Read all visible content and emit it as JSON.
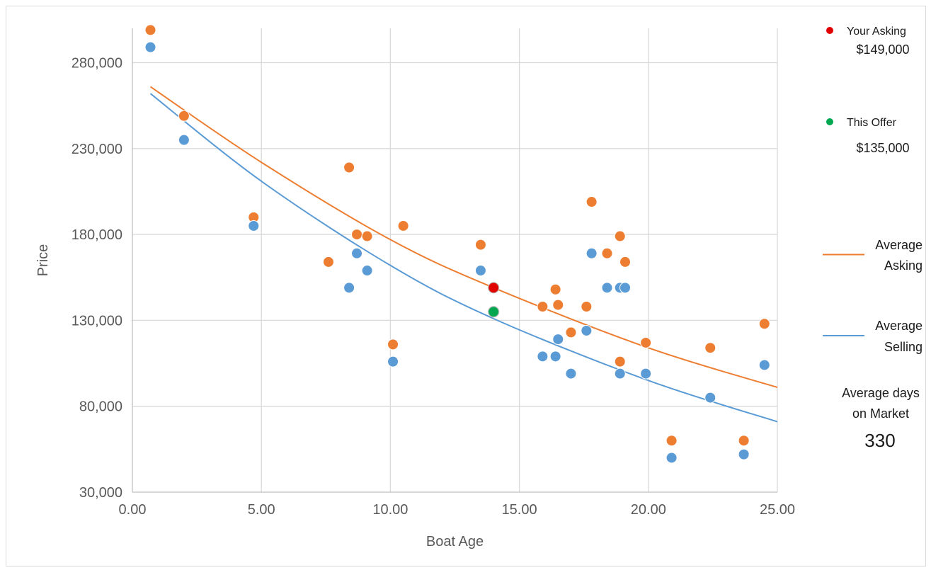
{
  "chart_data": {
    "type": "scatter",
    "xlabel": "Boat Age",
    "ylabel": "Price",
    "xlim": [
      0,
      25
    ],
    "ylim": [
      30000,
      300000
    ],
    "x_ticks": [
      "0.00",
      "5.00",
      "10.00",
      "15.00",
      "20.00",
      "25.00"
    ],
    "y_ticks": [
      "30,000",
      "80,000",
      "130,000",
      "180,000",
      "230,000",
      "280,000"
    ],
    "x_tick_values": [
      0,
      5,
      10,
      15,
      20,
      25
    ],
    "y_tick_values": [
      30000,
      80000,
      130000,
      180000,
      230000,
      280000
    ],
    "grid": true,
    "series": [
      {
        "role": "asking",
        "color": "#ed7d31",
        "points": [
          [
            0.7,
            299000
          ],
          [
            2.0,
            249000
          ],
          [
            4.7,
            190000
          ],
          [
            7.6,
            164000
          ],
          [
            8.4,
            219000
          ],
          [
            8.7,
            180000
          ],
          [
            9.1,
            179000
          ],
          [
            10.1,
            116000
          ],
          [
            10.5,
            185000
          ],
          [
            13.5,
            174000
          ],
          [
            15.9,
            138000
          ],
          [
            16.4,
            148000
          ],
          [
            16.5,
            139000
          ],
          [
            17.0,
            123000
          ],
          [
            17.6,
            138000
          ],
          [
            17.8,
            199000
          ],
          [
            18.4,
            169000
          ],
          [
            18.9,
            179000
          ],
          [
            18.9,
            106000
          ],
          [
            19.1,
            164000
          ],
          [
            19.9,
            117000
          ],
          [
            20.9,
            60000
          ],
          [
            22.4,
            114000
          ],
          [
            23.7,
            60000
          ],
          [
            24.5,
            128000
          ]
        ]
      },
      {
        "role": "selling",
        "color": "#5b9bd5",
        "points": [
          [
            0.7,
            289000
          ],
          [
            2.0,
            235000
          ],
          [
            4.7,
            185000
          ],
          [
            8.4,
            149000
          ],
          [
            8.7,
            169000
          ],
          [
            9.1,
            159000
          ],
          [
            10.1,
            106000
          ],
          [
            13.5,
            159000
          ],
          [
            15.9,
            109000
          ],
          [
            16.4,
            109000
          ],
          [
            16.5,
            119000
          ],
          [
            17.0,
            99000
          ],
          [
            17.6,
            124000
          ],
          [
            17.8,
            169000
          ],
          [
            18.4,
            149000
          ],
          [
            18.9,
            149000
          ],
          [
            18.9,
            99000
          ],
          [
            19.1,
            149000
          ],
          [
            19.9,
            99000
          ],
          [
            20.9,
            50000
          ],
          [
            22.4,
            85000
          ],
          [
            23.7,
            52000
          ],
          [
            24.5,
            104000
          ]
        ]
      }
    ],
    "highlights": [
      {
        "label": "Your Asking",
        "value": "$149,000",
        "x": 14.0,
        "y": 149000,
        "color": "#e00000"
      },
      {
        "label": "This Offer",
        "value": "$135,000",
        "x": 14.0,
        "y": 135000,
        "color": "#00a650"
      }
    ],
    "trendlines": [
      {
        "label": "Average Asking",
        "label_lines": [
          "Average",
          "Asking"
        ],
        "color": "#ed7d31",
        "points": [
          [
            0.7,
            266000
          ],
          [
            5,
            222000
          ],
          [
            10,
            177000
          ],
          [
            14,
            149000
          ],
          [
            20,
            114000
          ],
          [
            25,
            91000
          ]
        ]
      },
      {
        "label": "Average Selling",
        "label_lines": [
          "Average",
          "Selling"
        ],
        "color": "#5b9bd5",
        "points": [
          [
            0.7,
            262000
          ],
          [
            5,
            211000
          ],
          [
            10,
            162000
          ],
          [
            14,
            131000
          ],
          [
            20,
            95000
          ],
          [
            25,
            71000
          ]
        ]
      }
    ],
    "days_on_market": {
      "label_lines": [
        "Average days",
        "on Market"
      ],
      "value": "330"
    }
  }
}
